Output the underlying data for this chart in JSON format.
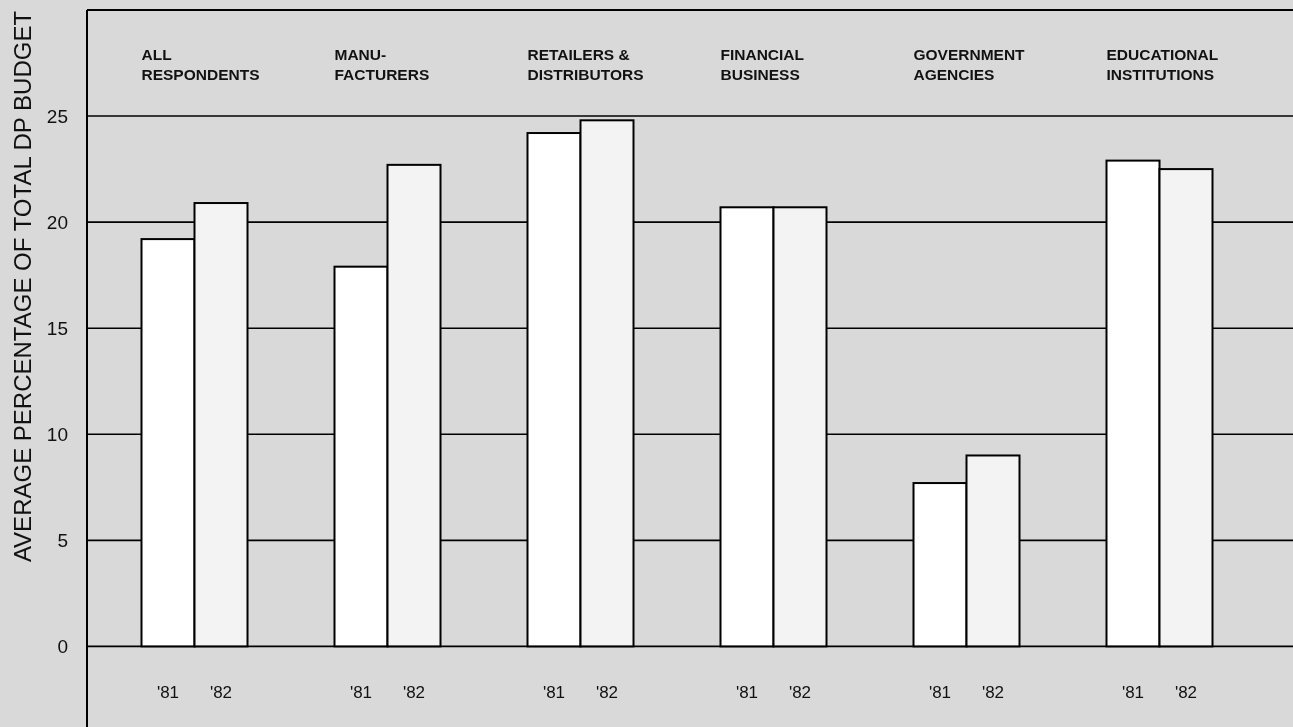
{
  "chart_data": {
    "type": "bar",
    "ylabel": "AVERAGE PERCENTAGE OF TOTAL DP BUDGET",
    "categories": [
      "ALL\nRESPONDENTS",
      "MANU-\nFACTURERS",
      "RETAILERS &\nDISTRIBUTORS",
      "FINANCIAL\nBUSINESS",
      "GOVERNMENT\nAGENCIES",
      "EDUCATIONAL\nINSTITUTIONS"
    ],
    "series": [
      {
        "name": "'81",
        "color": "#ffffff",
        "values": [
          19.2,
          17.9,
          24.2,
          20.7,
          7.7,
          22.9
        ]
      },
      {
        "name": "'82",
        "color": "#f3f3f3",
        "values": [
          20.9,
          22.7,
          24.8,
          20.7,
          9.0,
          22.5
        ]
      }
    ],
    "ylim": [
      -3.8,
      30
    ],
    "yticks": [
      0,
      5,
      10,
      15,
      20,
      25
    ],
    "grid": "y"
  }
}
